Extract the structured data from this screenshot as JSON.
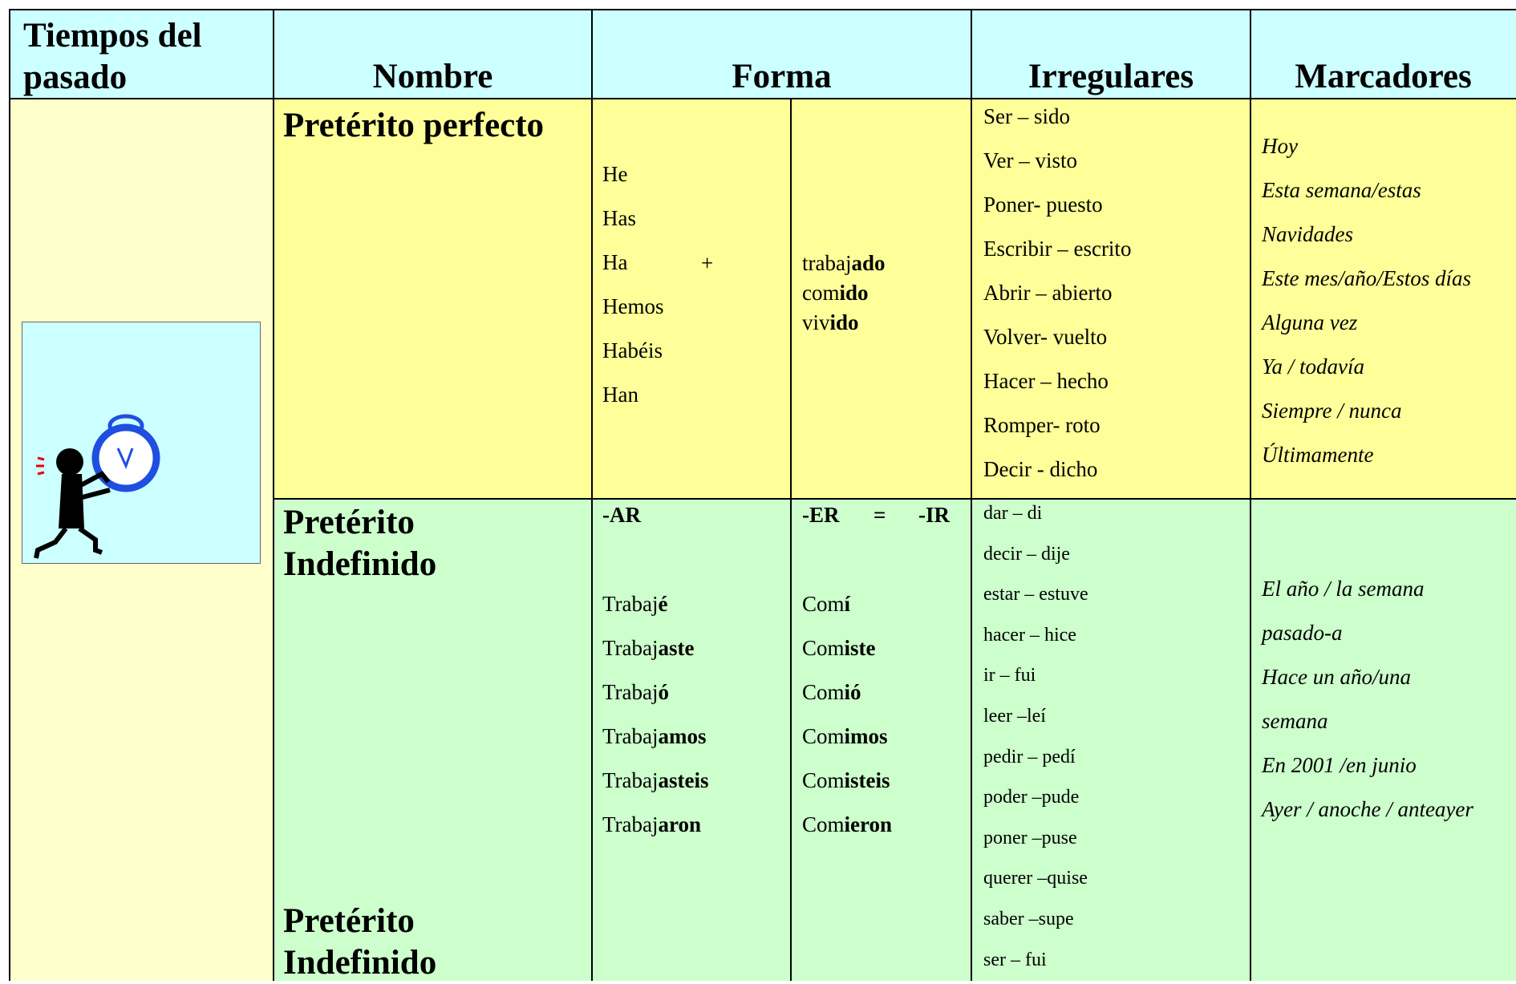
{
  "header": {
    "tiempos": "Tiempos del pasado",
    "nombre": "Nombre",
    "forma": "Forma",
    "irregulares": "Irregulares",
    "marcadores": "Marcadores"
  },
  "perfecto": {
    "name": "Pretérito perfecto",
    "auxiliaries": [
      "He",
      "Has",
      "Ha",
      "Hemos",
      "Habéis",
      "Han"
    ],
    "plus": "+",
    "participles": [
      {
        "stem": "trabaj",
        "ending": "ado"
      },
      {
        "stem": "com",
        "ending": "ido"
      },
      {
        "stem": "viv",
        "ending": "ido"
      }
    ],
    "irregulars": [
      "Ser – sido",
      "Ver – visto",
      "Poner- puesto",
      "Escribir – escrito",
      "Abrir – abierto",
      "Volver- vuelto",
      "Hacer – hecho",
      "Romper- roto",
      "Decir - dicho"
    ],
    "markers": [
      "Hoy",
      "Esta semana/estas",
      "Navidades",
      "Este mes/año/Estos días",
      "Alguna vez",
      "Ya / todavía",
      "Siempre / nunca",
      "Últimamente"
    ]
  },
  "indefinido": {
    "name": "Pretérito Indefinido",
    "ar_header": "-AR",
    "er_header": "-ER",
    "equals": "=",
    "ir_header": "-IR",
    "ar_forms": [
      {
        "stem": "Trabaj",
        "ending": "é"
      },
      {
        "stem": "Trabaj",
        "ending": "aste"
      },
      {
        "stem": "Trabaj",
        "ending": "ó"
      },
      {
        "stem": "Trabaj",
        "ending": "amos"
      },
      {
        "stem": "Trabaj",
        "ending": "asteis"
      },
      {
        "stem": "Trabaj",
        "ending": "aron"
      }
    ],
    "er_forms": [
      {
        "stem": "Com",
        "ending": "í"
      },
      {
        "stem": "Com",
        "ending": "iste"
      },
      {
        "stem": "Com",
        "ending": "ió"
      },
      {
        "stem": "Com",
        "ending": "imos"
      },
      {
        "stem": "Com",
        "ending": "isteis"
      },
      {
        "stem": "Com",
        "ending": "ieron"
      }
    ],
    "irregulars": [
      "dar – di",
      "decir – dije",
      "estar – estuve",
      "hacer – hice",
      "ir – fui",
      "leer –leí",
      "pedir – pedí",
      "poder –pude",
      "poner –puse",
      "querer –quise",
      "saber –supe",
      "ser – fui"
    ],
    "markers": [
      "El año / la semana",
      "pasado-a",
      "Hace un año/una",
      "semana",
      "En 2001 /en junio",
      "Ayer / anoche / anteayer"
    ],
    "name2": "Pretérito Indefinido"
  }
}
